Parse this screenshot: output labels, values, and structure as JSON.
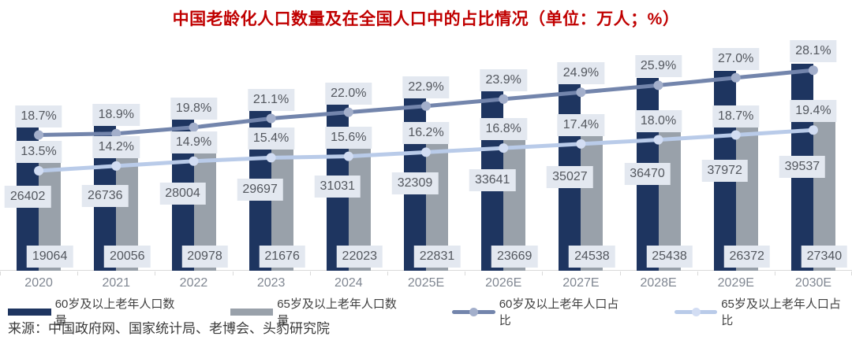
{
  "title": "中国老龄化人口数量及在全国人口中的占比情况（单位：万人；%）",
  "source": "来源：中国政府网、国家统计局、老博会、头豹研究院",
  "colors": {
    "title": "#C00000",
    "bar60": "#1E3560",
    "bar65": "#99A1AA",
    "line60": "#7385AC",
    "line60_marker": "#A3AFCB",
    "line65": "#B9CBE9",
    "line65_marker": "#D2DDF3",
    "label_bg": "#E3E8F0",
    "label_text": "#53575E",
    "axis_line": "#D9D9D9",
    "axis_text": "#808792",
    "legend_text": "#404040",
    "source_text": "#3A3A3A"
  },
  "chart_data": {
    "type": "combo-bar-line",
    "title": "中国老龄化人口数量及在全国人口中的占比情况（单位：万人；%）",
    "categories": [
      "2020",
      "2021",
      "2022",
      "2023",
      "2024",
      "2025E",
      "2026E",
      "2027E",
      "2028E",
      "2029E",
      "2030E"
    ],
    "series": [
      {
        "name": "60岁及以上老年人口数量",
        "type": "bar",
        "unit": "万人",
        "values": [
          26402,
          26736,
          28004,
          29697,
          31031,
          32309,
          33641,
          35027,
          36470,
          37972,
          39537
        ]
      },
      {
        "name": "65岁及以上老年人口数量",
        "type": "bar",
        "unit": "万人",
        "values": [
          19064,
          20056,
          20978,
          21676,
          22023,
          22831,
          23669,
          24538,
          25438,
          26372,
          27340
        ]
      },
      {
        "name": "60岁及以上老年人口占比",
        "type": "line",
        "unit": "%",
        "values": [
          18.7,
          18.9,
          19.8,
          21.1,
          22.0,
          22.9,
          23.9,
          24.9,
          25.9,
          27.0,
          28.1
        ]
      },
      {
        "name": "65岁及以上老年人口占比",
        "type": "line",
        "unit": "%",
        "values": [
          13.5,
          14.2,
          14.9,
          15.4,
          15.6,
          16.2,
          16.8,
          17.4,
          18.0,
          18.7,
          19.4
        ]
      }
    ],
    "layout": {
      "legend_position": "bottom",
      "grid": false,
      "value_axis_visible": false,
      "data_labels": "all points labeled, boxed"
    }
  }
}
